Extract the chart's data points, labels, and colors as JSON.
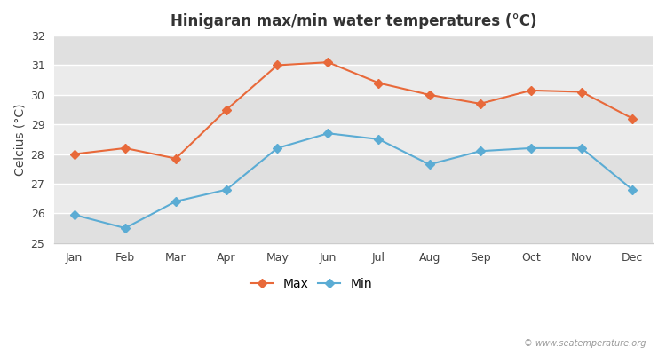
{
  "title": "Hinigaran max/min water temperatures (°C)",
  "ylabel": "Celcius (°C)",
  "months": [
    "Jan",
    "Feb",
    "Mar",
    "Apr",
    "May",
    "Jun",
    "Jul",
    "Aug",
    "Sep",
    "Oct",
    "Nov",
    "Dec"
  ],
  "max_values": [
    28.0,
    28.2,
    27.85,
    29.5,
    31.0,
    31.1,
    30.4,
    30.0,
    29.7,
    30.15,
    30.1,
    29.2
  ],
  "min_values": [
    25.95,
    25.5,
    26.4,
    26.8,
    28.2,
    28.7,
    28.5,
    27.65,
    28.1,
    28.2,
    28.2,
    26.8
  ],
  "max_color": "#e8693a",
  "min_color": "#5bacd4",
  "bg_color": "#ffffff",
  "plot_bg_color": "#f2f2f2",
  "band_color_light": "#ebebeb",
  "band_color_dark": "#e0e0e0",
  "grid_color": "#ffffff",
  "ylim": [
    25,
    32
  ],
  "yticks": [
    25,
    26,
    27,
    28,
    29,
    30,
    31,
    32
  ],
  "marker": "D",
  "markersize": 5,
  "linewidth": 1.5,
  "title_fontsize": 12,
  "label_fontsize": 10,
  "tick_fontsize": 9,
  "watermark": "© www.seatemperature.org"
}
